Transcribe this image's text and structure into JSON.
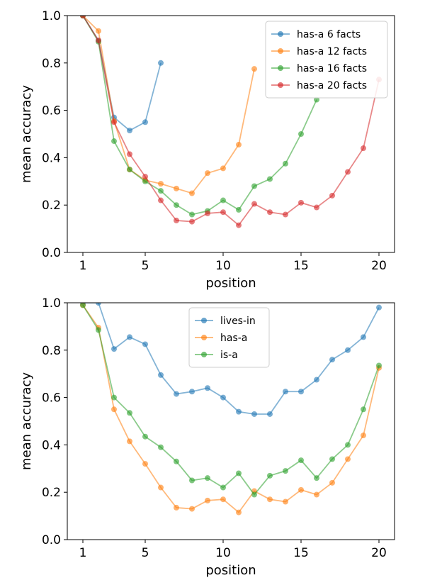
{
  "chart_data": [
    {
      "type": "line",
      "xlabel": "position",
      "ylabel": "mean accuracy",
      "xlim": [
        0,
        21
      ],
      "ylim": [
        0.0,
        1.0
      ],
      "xticks": [
        1,
        5,
        10,
        15,
        20
      ],
      "yticks": [
        0.0,
        0.2,
        0.4,
        0.6,
        0.8,
        1.0
      ],
      "xtick_labels": [
        "1",
        "5",
        "10",
        "15",
        "20"
      ],
      "ytick_labels": [
        "0.0",
        "0.2",
        "0.4",
        "0.6",
        "0.8",
        "1.0"
      ],
      "legend_position": "top-right",
      "grid": false,
      "series": [
        {
          "name": "has-a 6 facts",
          "color": "#1f77b4",
          "x": [
            1,
            2,
            3,
            4,
            5,
            6
          ],
          "y": [
            1.0,
            0.895,
            0.57,
            0.515,
            0.55,
            0.8
          ]
        },
        {
          "name": "has-a 12 facts",
          "color": "#ff7f0e",
          "x": [
            1,
            2,
            3,
            4,
            5,
            6,
            7,
            8,
            9,
            10,
            11,
            12
          ],
          "y": [
            1.0,
            0.935,
            0.555,
            0.35,
            0.305,
            0.29,
            0.27,
            0.25,
            0.335,
            0.355,
            0.455,
            0.775
          ]
        },
        {
          "name": "has-a 16 facts",
          "color": "#2ca02c",
          "x": [
            1,
            2,
            3,
            4,
            5,
            6,
            7,
            8,
            9,
            10,
            11,
            12,
            13,
            14,
            15,
            16
          ],
          "y": [
            1.0,
            0.89,
            0.47,
            0.35,
            0.3,
            0.26,
            0.2,
            0.16,
            0.175,
            0.22,
            0.18,
            0.28,
            0.31,
            0.375,
            0.5,
            0.645
          ]
        },
        {
          "name": "has-a 20 facts",
          "color": "#d62728",
          "x": [
            1,
            2,
            3,
            4,
            5,
            6,
            7,
            8,
            9,
            10,
            11,
            12,
            13,
            14,
            15,
            16,
            17,
            18,
            19,
            20
          ],
          "y": [
            1.0,
            0.895,
            0.55,
            0.415,
            0.32,
            0.22,
            0.135,
            0.13,
            0.165,
            0.17,
            0.115,
            0.205,
            0.17,
            0.16,
            0.21,
            0.19,
            0.24,
            0.34,
            0.44,
            0.73
          ]
        }
      ]
    },
    {
      "type": "line",
      "xlabel": "position",
      "ylabel": "mean accuracy",
      "xlim": [
        0,
        21
      ],
      "ylim": [
        0.0,
        1.0
      ],
      "xticks": [
        1,
        5,
        10,
        15,
        20
      ],
      "yticks": [
        0.0,
        0.2,
        0.4,
        0.6,
        0.8,
        1.0
      ],
      "xtick_labels": [
        "1",
        "5",
        "10",
        "15",
        "20"
      ],
      "ytick_labels": [
        "0.0",
        "0.2",
        "0.4",
        "0.6",
        "0.8",
        "1.0"
      ],
      "legend_position": "top-center",
      "grid": false,
      "series": [
        {
          "name": "lives-in",
          "color": "#1f77b4",
          "x": [
            1,
            2,
            3,
            4,
            5,
            6,
            7,
            8,
            9,
            10,
            11,
            12,
            13,
            14,
            15,
            16,
            17,
            18,
            19,
            20
          ],
          "y": [
            1.0,
            1.0,
            0.805,
            0.855,
            0.825,
            0.695,
            0.615,
            0.625,
            0.64,
            0.6,
            0.54,
            0.53,
            0.53,
            0.625,
            0.625,
            0.675,
            0.76,
            0.8,
            0.855,
            0.98
          ]
        },
        {
          "name": "has-a",
          "color": "#ff7f0e",
          "x": [
            1,
            2,
            3,
            4,
            5,
            6,
            7,
            8,
            9,
            10,
            11,
            12,
            13,
            14,
            15,
            16,
            17,
            18,
            19,
            20
          ],
          "y": [
            0.99,
            0.895,
            0.55,
            0.415,
            0.32,
            0.22,
            0.135,
            0.13,
            0.165,
            0.17,
            0.115,
            0.205,
            0.17,
            0.16,
            0.21,
            0.19,
            0.24,
            0.34,
            0.44,
            0.725
          ]
        },
        {
          "name": "is-a",
          "color": "#2ca02c",
          "x": [
            1,
            2,
            3,
            4,
            5,
            6,
            7,
            8,
            9,
            10,
            11,
            12,
            13,
            14,
            15,
            16,
            17,
            18,
            19,
            20
          ],
          "y": [
            0.99,
            0.885,
            0.6,
            0.535,
            0.435,
            0.39,
            0.33,
            0.25,
            0.26,
            0.22,
            0.28,
            0.19,
            0.27,
            0.29,
            0.335,
            0.26,
            0.34,
            0.4,
            0.55,
            0.735
          ]
        }
      ]
    }
  ]
}
